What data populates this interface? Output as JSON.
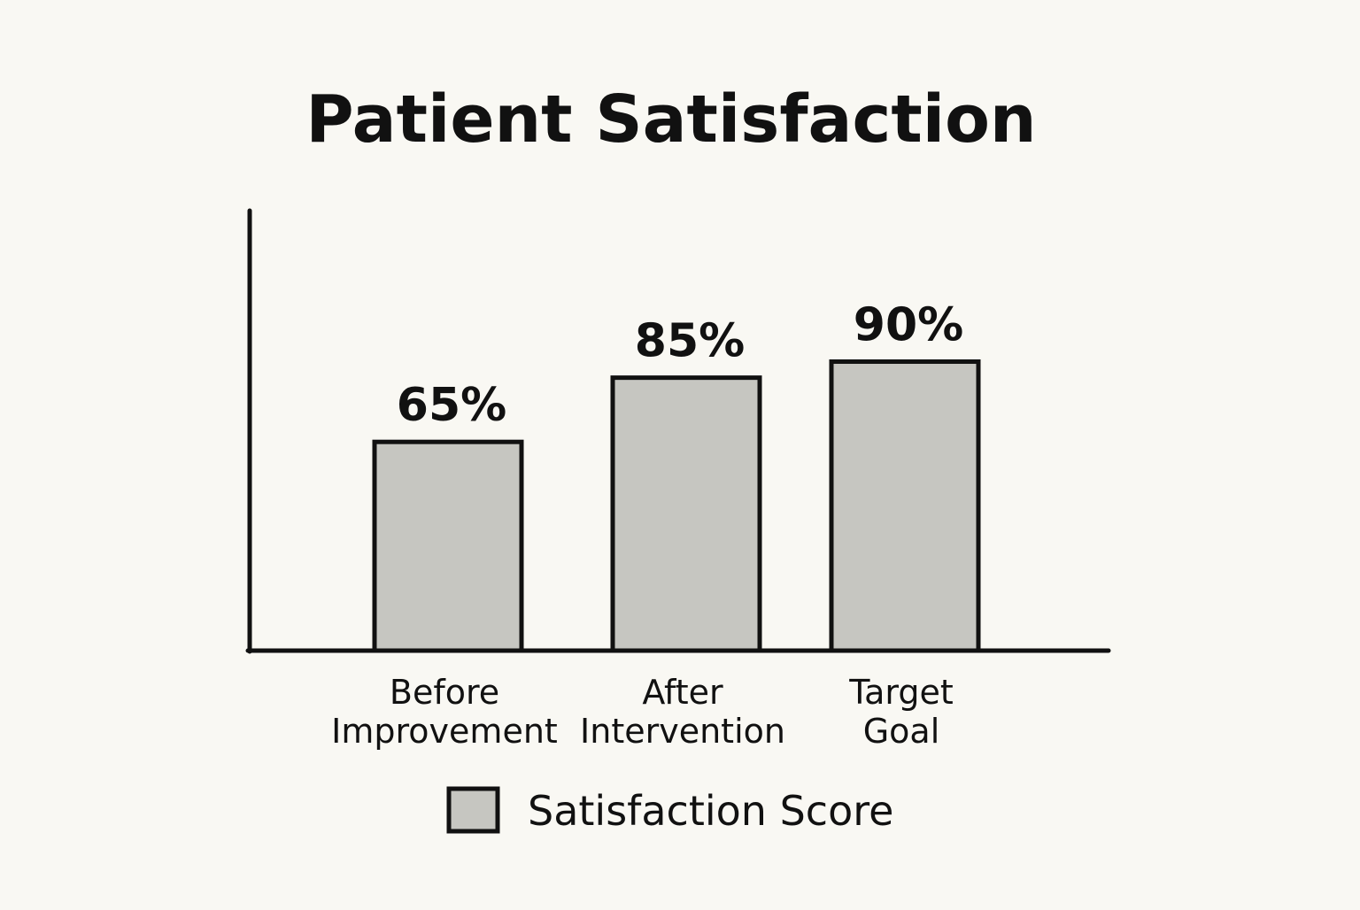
{
  "chart_data": {
    "type": "bar",
    "title": "Patient Satisfaction",
    "xlabel": "",
    "ylabel": "",
    "categories": [
      [
        "Before",
        "Improvement"
      ],
      [
        "After",
        "Intervention"
      ],
      [
        "Target",
        "Goal"
      ]
    ],
    "series": [
      {
        "name": "Satisfaction Score",
        "values": [
          65,
          85,
          90
        ],
        "value_labels": [
          "65%",
          "85%",
          "90%"
        ],
        "color": "#c6c6c1"
      }
    ],
    "ylim": [
      0,
      137
    ],
    "grid": false,
    "legend": "bottom-center"
  },
  "colors": {
    "background": "#f9f8f3",
    "bar_fill": "#c6c6c1",
    "stroke": "#111111"
  }
}
